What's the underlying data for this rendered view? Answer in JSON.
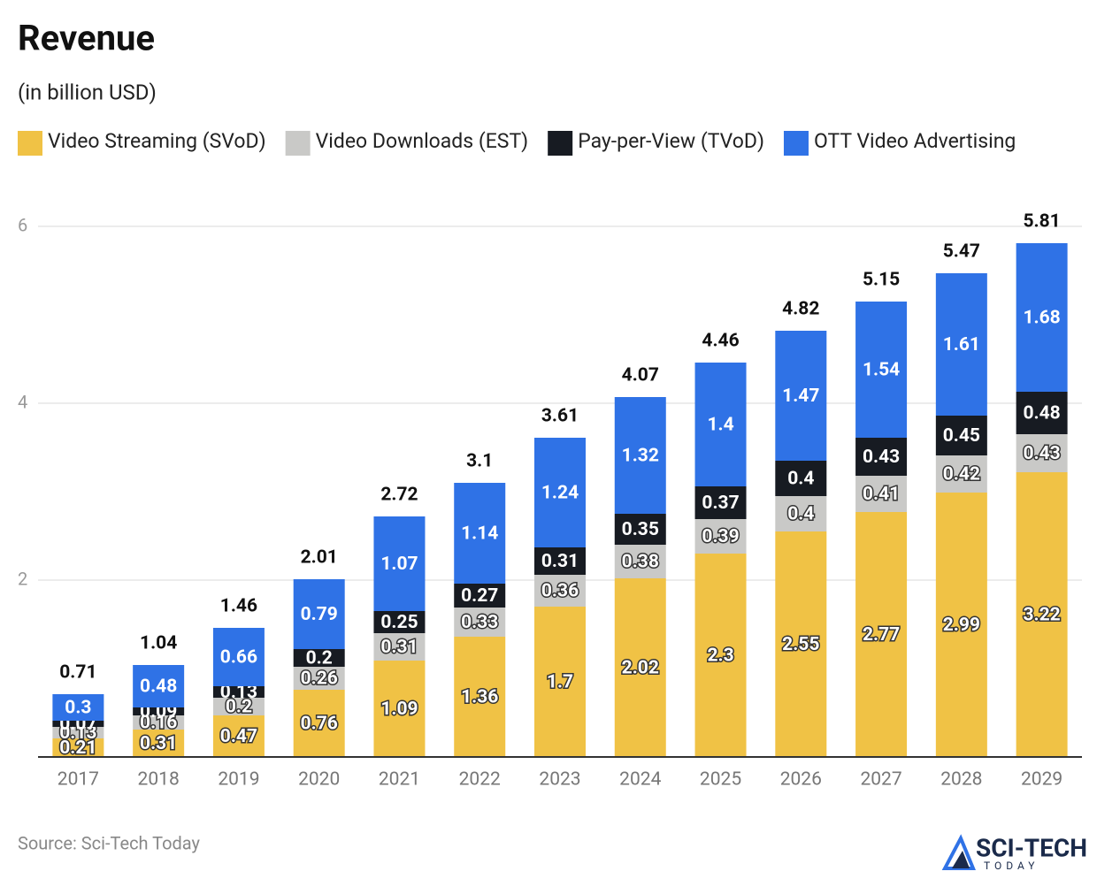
{
  "chart_data": {
    "type": "stacked_bar",
    "title": "Revenue",
    "subtitle": "(in billion USD)",
    "categories": [
      "2017",
      "2018",
      "2019",
      "2020",
      "2021",
      "2022",
      "2023",
      "2024",
      "2025",
      "2026",
      "2027",
      "2028",
      "2029"
    ],
    "series": [
      {
        "name": "Video Streaming (SVoD)",
        "color": "#f0c245",
        "values": [
          0.21,
          0.31,
          0.47,
          0.76,
          1.09,
          1.36,
          1.7,
          2.02,
          2.3,
          2.55,
          2.77,
          2.99,
          3.22
        ]
      },
      {
        "name": "Video Downloads (EST)",
        "color": "#c9c9c7",
        "values": [
          0.13,
          0.16,
          0.2,
          0.26,
          0.31,
          0.33,
          0.36,
          0.38,
          0.39,
          0.4,
          0.41,
          0.42,
          0.43
        ]
      },
      {
        "name": "Pay-per-View (TVoD)",
        "color": "#171b22",
        "values": [
          0.07,
          0.09,
          0.13,
          0.2,
          0.25,
          0.27,
          0.31,
          0.35,
          0.37,
          0.4,
          0.43,
          0.45,
          0.48
        ]
      },
      {
        "name": "OTT Video Advertising",
        "color": "#2f72e6",
        "values": [
          0.3,
          0.48,
          0.66,
          0.79,
          1.07,
          1.14,
          1.24,
          1.32,
          1.4,
          1.47,
          1.54,
          1.61,
          1.68
        ]
      }
    ],
    "totals": [
      0.71,
      1.04,
      1.46,
      2.01,
      2.72,
      3.1,
      3.61,
      4.07,
      4.46,
      4.82,
      5.15,
      5.47,
      5.81
    ],
    "ylim": [
      0,
      6
    ],
    "yticks": [
      2,
      4,
      6
    ],
    "grid": true,
    "source": "Source: Sci-Tech Today"
  },
  "logo": {
    "name": "SCI-TECH",
    "tagline": "TODAY"
  }
}
